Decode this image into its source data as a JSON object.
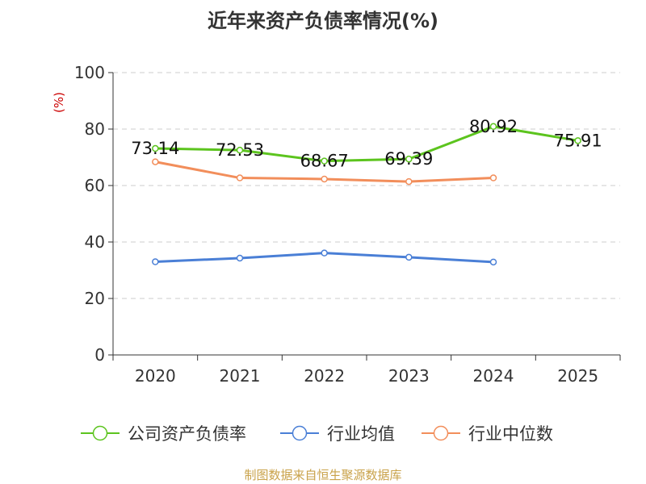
{
  "chart_data": {
    "type": "line",
    "title": "近年来资产负债率情况(%)",
    "ylabel": "(%)",
    "xlabel": "",
    "categories": [
      "2020",
      "2021",
      "2022",
      "2023",
      "2024",
      "2025"
    ],
    "yticks": [
      "0",
      "20",
      "40",
      "60",
      "80",
      "100"
    ],
    "ylim": [
      0,
      100
    ],
    "grid": true,
    "legend_position": "bottom",
    "series": [
      {
        "name": "公司资产负债率",
        "color": "#5cc41e",
        "values": [
          73.14,
          72.53,
          68.67,
          69.39,
          80.92,
          75.91
        ],
        "labels": [
          "73.14",
          "72.53",
          "68.67",
          "69.39",
          "80.92",
          "75.91"
        ]
      },
      {
        "name": "行业均值",
        "color": "#4a7fd6",
        "values": [
          33.0,
          34.3,
          36.1,
          34.6,
          32.9,
          null
        ]
      },
      {
        "name": "行业中位数",
        "color": "#f28e5b",
        "values": [
          68.4,
          62.7,
          62.3,
          61.4,
          62.7,
          null
        ]
      }
    ]
  },
  "source": "制图数据来自恒生聚源数据库"
}
